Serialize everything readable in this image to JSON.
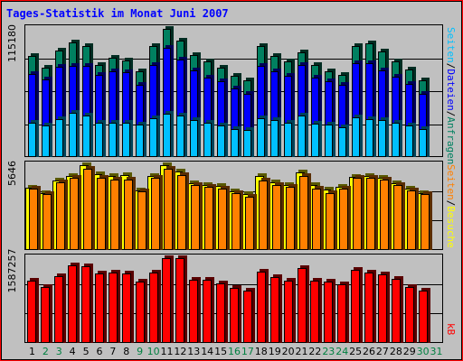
{
  "title": "Tages-Statistik im Monat Juni 2007",
  "colors": {
    "background": "#c0c0c0",
    "frame": "#ff0000",
    "title": "#0000ff",
    "anfragen": "#008060",
    "dateien": "#0000ff",
    "seiten": "#00c0ff",
    "besuche": "#ffff00",
    "seiten_orange": "#ff8000",
    "kb": "#ff0000",
    "weekday_label": "#000000",
    "weekend_label": "#008040"
  },
  "panels": {
    "hits": {
      "max_label": "115180",
      "legend": [
        {
          "text": "Anfragen",
          "color": "#008060"
        },
        {
          "text": "/",
          "color": "#000000"
        },
        {
          "text": "Dateien",
          "color": "#0000ff"
        },
        {
          "text": "/",
          "color": "#000000"
        },
        {
          "text": "Seiten",
          "color": "#00c0ff"
        }
      ]
    },
    "visits": {
      "max_label": "5646",
      "legend": [
        {
          "text": "Besuche",
          "color": "#ffff00"
        },
        {
          "text": "/",
          "color": "#000000"
        },
        {
          "text": "Seiten",
          "color": "#ff8000"
        }
      ]
    },
    "kb": {
      "max_label": "1587257",
      "legend": [
        {
          "text": "kB",
          "color": "#ff0000"
        }
      ]
    }
  },
  "chart_data": [
    {
      "type": "bar",
      "categories": [
        "1",
        "2",
        "3",
        "4",
        "5",
        "6",
        "7",
        "8",
        "9",
        "10",
        "11",
        "12",
        "13",
        "14",
        "15",
        "16",
        "17",
        "18",
        "19",
        "20",
        "21",
        "22",
        "23",
        "24",
        "25",
        "26",
        "27",
        "28",
        "29",
        "30",
        "31"
      ],
      "weekend_days": [
        "2",
        "3",
        "9",
        "10",
        "16",
        "17",
        "23",
        "24",
        "30",
        "31"
      ],
      "ylim": [
        0,
        115180
      ],
      "series": [
        {
          "name": "Anfragen",
          "values": [
            91000,
            80000,
            96000,
            103000,
            100000,
            83000,
            89000,
            87000,
            77000,
            100000,
            115000,
            105000,
            92000,
            86000,
            80000,
            73000,
            69000,
            100000,
            91000,
            86000,
            94000,
            83000,
            77000,
            74000,
            100000,
            102000,
            95000,
            86000,
            79000,
            69000,
            null
          ]
        },
        {
          "name": "Dateien",
          "values": [
            75000,
            70000,
            81000,
            82000,
            82000,
            74000,
            77000,
            76000,
            65000,
            83000,
            98000,
            88000,
            78000,
            71000,
            68000,
            62000,
            57000,
            82000,
            77000,
            73000,
            83000,
            71000,
            68000,
            65000,
            84000,
            84000,
            78000,
            72000,
            66000,
            57000,
            null
          ]
        },
        {
          "name": "Seiten",
          "values": [
            31000,
            28000,
            34000,
            40000,
            37000,
            31000,
            31000,
            31000,
            29000,
            35000,
            39000,
            37000,
            33000,
            31000,
            28000,
            25000,
            24000,
            35000,
            33000,
            31000,
            37000,
            30000,
            29000,
            27000,
            36000,
            34000,
            33000,
            31000,
            28000,
            25000,
            null
          ]
        }
      ]
    },
    {
      "type": "bar",
      "categories": [
        "1",
        "2",
        "3",
        "4",
        "5",
        "6",
        "7",
        "8",
        "9",
        "10",
        "11",
        "12",
        "13",
        "14",
        "15",
        "16",
        "17",
        "18",
        "19",
        "20",
        "21",
        "22",
        "23",
        "24",
        "25",
        "26",
        "27",
        "28",
        "29",
        "30",
        "31"
      ],
      "ylim": [
        0,
        5646
      ],
      "series": [
        {
          "name": "Besuche",
          "values": [
            4150,
            3800,
            4600,
            4900,
            5650,
            5050,
            4900,
            5000,
            3950,
            4900,
            5650,
            5250,
            4450,
            4350,
            4250,
            3900,
            3700,
            4950,
            4500,
            4300,
            5150,
            4300,
            4000,
            4200,
            4850,
            4900,
            4800,
            4450,
            4100,
            3800,
            null
          ]
        },
        {
          "name": "Seiten",
          "values": [
            4100,
            3700,
            4500,
            4800,
            5400,
            4800,
            4700,
            4700,
            3900,
            4800,
            5400,
            5000,
            4300,
            4200,
            4100,
            3800,
            3550,
            4650,
            4300,
            4200,
            4900,
            4100,
            3800,
            4100,
            4800,
            4800,
            4700,
            4300,
            3950,
            3700,
            null
          ]
        }
      ]
    },
    {
      "type": "bar",
      "categories": [
        "1",
        "2",
        "3",
        "4",
        "5",
        "6",
        "7",
        "8",
        "9",
        "10",
        "11",
        "12",
        "13",
        "14",
        "15",
        "16",
        "17",
        "18",
        "19",
        "20",
        "21",
        "22",
        "23",
        "24",
        "25",
        "26",
        "27",
        "28",
        "29",
        "30",
        "31"
      ],
      "ylim": [
        0,
        1587257
      ],
      "series": [
        {
          "name": "kB",
          "values": [
            1170000,
            1050000,
            1250000,
            1460000,
            1440000,
            1300000,
            1310000,
            1300000,
            1140000,
            1320000,
            1580000,
            1580000,
            1190000,
            1180000,
            1110000,
            1030000,
            980000,
            1330000,
            1240000,
            1170000,
            1400000,
            1160000,
            1140000,
            1090000,
            1360000,
            1310000,
            1290000,
            1200000,
            1040000,
            980000,
            null
          ]
        }
      ]
    }
  ]
}
